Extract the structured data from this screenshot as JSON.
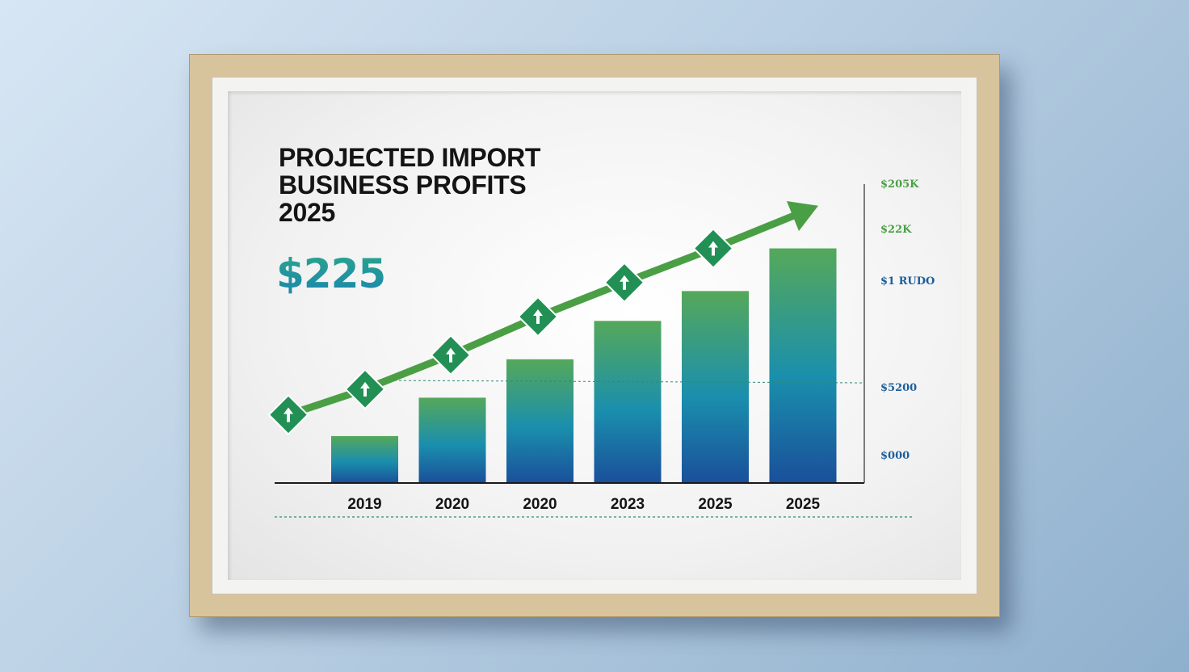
{
  "chart_data": {
    "type": "bar",
    "title_lines": [
      "PROJECTED IMPORT",
      "BUSINESS PROFITS",
      "2025"
    ],
    "headline_value": "$225",
    "categories": [
      "2019",
      "2020",
      "2020",
      "2023",
      "2025",
      "2025"
    ],
    "values": [
      0.55,
      1.0,
      1.45,
      1.9,
      2.25,
      2.75
    ],
    "trend_line": [
      0.8,
      1.1,
      1.5,
      1.95,
      2.35,
      2.75,
      3.2
    ],
    "y_tick_labels": [
      "$205K",
      "$22K",
      "$1 RUDO",
      "$5200",
      "$000"
    ],
    "ylim": [
      0,
      3.2
    ],
    "xlabel": "",
    "ylabel": "",
    "grid": false,
    "legend": "none"
  },
  "colors": {
    "bar_top": "#55a85a",
    "bar_bottom": "#1a4f9a",
    "line": "#4a9f45",
    "marker": "#229055",
    "tick_green": "#4a9f45",
    "tick_blue": "#1c5e9a"
  }
}
